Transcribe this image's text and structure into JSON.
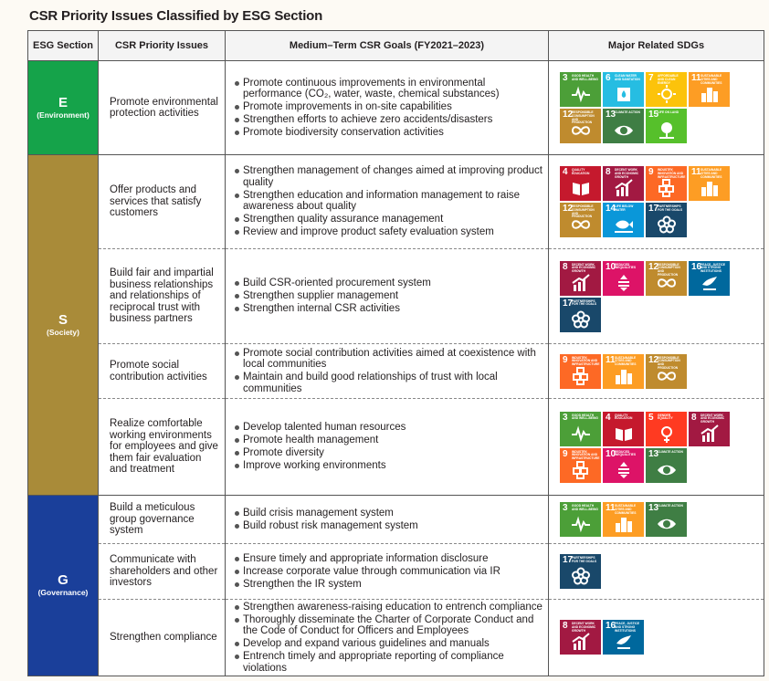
{
  "title": "CSR Priority Issues Classified by ESG Section",
  "headers": {
    "esg": "ESG Section",
    "issues": "CSR Priority Issues",
    "goals": "Medium–Term CSR Goals (FY2021–2023)",
    "sdgs": "Major Related SDGs"
  },
  "sections": {
    "E": {
      "letter": "E",
      "name": "(Environment)",
      "color": "#15a34a"
    },
    "S": {
      "letter": "S",
      "name": "(Society)",
      "color": "#a98b39"
    },
    "G": {
      "letter": "G",
      "name": "(Governance)",
      "color": "#1a3f9a"
    }
  },
  "sdg_goals": {
    "3": {
      "label": "Good health and well-being",
      "color": "#4c9f38",
      "icon": "heartbeat-icon"
    },
    "4": {
      "label": "Quality education",
      "color": "#c5192d",
      "icon": "book-icon"
    },
    "5": {
      "label": "Gender equality",
      "color": "#ff3a21",
      "icon": "gender-icon"
    },
    "6": {
      "label": "Clean water and sanitation",
      "color": "#26bde2",
      "icon": "water-drop-icon"
    },
    "7": {
      "label": "Affordable and clean energy",
      "color": "#fcc30b",
      "icon": "sun-icon"
    },
    "8": {
      "label": "Decent work and economic growth",
      "color": "#a21942",
      "icon": "growth-chart-icon"
    },
    "9": {
      "label": "Industry, innovation and infrastructure",
      "color": "#fd6925",
      "icon": "cubes-icon"
    },
    "10": {
      "label": "Reduced inequalities",
      "color": "#dd1367",
      "icon": "equality-icon"
    },
    "11": {
      "label": "Sustainable cities and communities",
      "color": "#fd9d24",
      "icon": "city-icon"
    },
    "12": {
      "label": "Responsible consumption and production",
      "color": "#bf8b2e",
      "icon": "infinity-icon"
    },
    "13": {
      "label": "Climate action",
      "color": "#3f7e44",
      "icon": "eye-globe-icon"
    },
    "14": {
      "label": "Life below water",
      "color": "#0a97d9",
      "icon": "fish-icon"
    },
    "15": {
      "label": "Life on land",
      "color": "#56c02b",
      "icon": "tree-icon"
    },
    "16": {
      "label": "Peace, justice and strong institutions",
      "color": "#00689d",
      "icon": "dove-icon"
    },
    "17": {
      "label": "Partnerships for the goals",
      "color": "#19486a",
      "icon": "rings-icon"
    }
  },
  "rows": [
    {
      "section": "E",
      "issue": "Promote environmental protection activities",
      "goals": [
        "Promote continuous improvements in environmental performance (CO₂, water, waste, chemical substances)",
        "Promote improvements in on-site capabilities",
        "Strengthen efforts to achieve zero accidents/disasters",
        "Promote biodiversity conservation activities"
      ],
      "sdgs": [
        "3",
        "6",
        "7",
        "11",
        "12",
        "13",
        "15"
      ]
    },
    {
      "section": "S",
      "issue": "Offer products and services that satisfy customers",
      "goals": [
        "Strengthen management of changes aimed at improving product quality",
        "Strengthen education and information management to raise awareness about quality",
        "Strengthen quality assurance management",
        "Review and improve product safety evaluation system"
      ],
      "sdgs": [
        "4",
        "8",
        "9",
        "11",
        "12",
        "14",
        "17"
      ]
    },
    {
      "section": "S",
      "issue": "Build fair and impartial business relationships and relationships of reciprocal trust with business partners",
      "goals": [
        "Build CSR-oriented procurement system",
        "Strengthen supplier management",
        "Strengthen internal CSR activities"
      ],
      "sdgs": [
        "8",
        "10",
        "12",
        "16",
        "17"
      ]
    },
    {
      "section": "S",
      "issue": "Promote social contribution activities",
      "goals": [
        "Promote social contribution activities aimed at coexistence with local communities",
        "Maintain and build good relationships of trust with local communities"
      ],
      "sdgs": [
        "9",
        "11",
        "12"
      ]
    },
    {
      "section": "S",
      "issue": "Realize comfortable working environments for employees and give them fair evaluation and treatment",
      "goals": [
        "Develop talented human resources",
        "Promote health management",
        "Promote diversity",
        "Improve working environments"
      ],
      "sdgs": [
        "3",
        "4",
        "5",
        "8",
        "9",
        "10",
        "13"
      ]
    },
    {
      "section": "G",
      "issue": "Build a meticulous group governance system",
      "goals": [
        "Build crisis management system",
        "Build robust risk management system"
      ],
      "sdgs": [
        "3",
        "11",
        "13"
      ]
    },
    {
      "section": "G",
      "issue": "Communicate with shareholders and other investors",
      "goals": [
        "Ensure timely and appropriate information disclosure",
        "Increase corporate value through communication via IR",
        "Strengthen the IR system"
      ],
      "sdgs": [
        "17"
      ]
    },
    {
      "section": "G",
      "issue": "Strengthen compliance",
      "goals": [
        "Strengthen awareness-raising education to entrench compliance",
        "Thoroughly disseminate the Charter of Corporate Conduct and the Code of Conduct for Officers and Employees",
        "Develop and expand various guidelines and manuals",
        "Entrench timely and appropriate reporting of compliance violations"
      ],
      "sdgs": [
        "8",
        "16"
      ]
    }
  ]
}
